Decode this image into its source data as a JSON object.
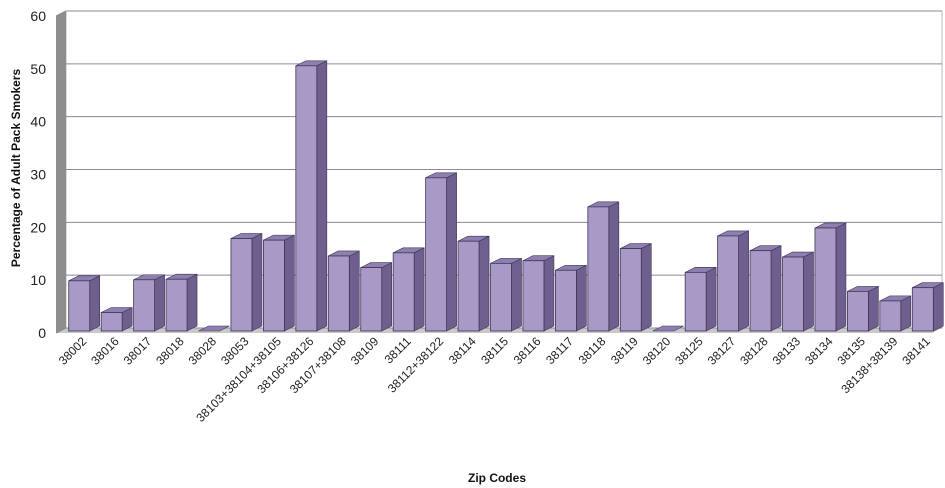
{
  "chart_data": {
    "type": "bar",
    "title": "",
    "xlabel": "Zip  Codes",
    "ylabel": "Percentage of Adult Pack Smokers",
    "ylim": [
      0,
      60
    ],
    "yticks": [
      0,
      10,
      20,
      30,
      40,
      50,
      60
    ],
    "grid": true,
    "legend": "none",
    "style": "3d-column",
    "colors": {
      "bar_front": "#a899c6",
      "bar_side": "#6e5f8e",
      "bar_top": "#8d7fb0",
      "bar_outline": "#3e3556",
      "wall": "#ffffff",
      "wall_side": "#8e8e8e",
      "floor": "#c9c9c9",
      "grid": "#8a8aa0"
    },
    "categories": [
      "38002",
      "38016",
      "38017",
      "38018",
      "38028",
      "38053",
      "38103+38104+38105",
      "38106+38126",
      "38107+38108",
      "38109",
      "38111",
      "38112+38122",
      "38114",
      "38115",
      "38116",
      "38117",
      "38118",
      "38119",
      "38120",
      "38125",
      "38127",
      "38128",
      "38133",
      "38134",
      "38135",
      "38138+38139",
      "38141"
    ],
    "values": [
      9.5,
      3.5,
      9.7,
      9.8,
      0,
      17.5,
      17.2,
      50.2,
      14.2,
      12.0,
      14.8,
      29.0,
      17.0,
      12.8,
      13.3,
      11.5,
      23.5,
      15.6,
      0,
      11.1,
      18.0,
      15.2,
      14.0,
      19.5,
      7.5,
      5.7,
      8.2
    ]
  }
}
